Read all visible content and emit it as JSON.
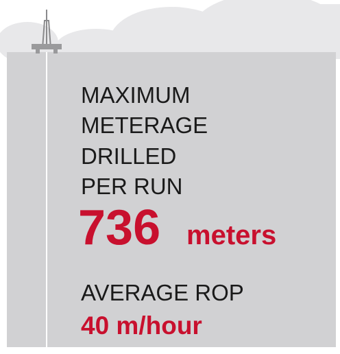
{
  "headline": {
    "lines": [
      "MAXIMUM",
      "METERAGE",
      "DRILLED",
      "PER RUN"
    ]
  },
  "meterage": {
    "value": "736",
    "unit": "meters"
  },
  "rop": {
    "label": "AVERAGE ROP",
    "value": "40 m/hour"
  }
}
